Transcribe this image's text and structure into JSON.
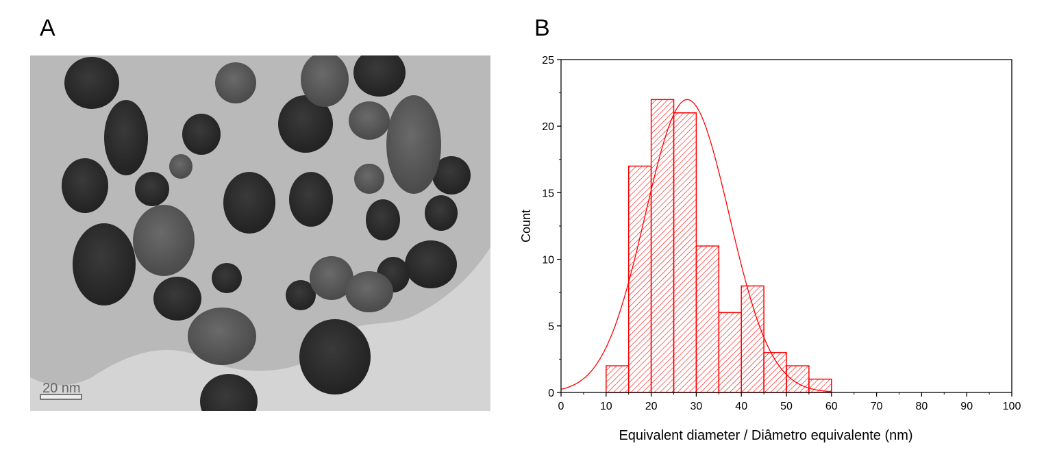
{
  "panels": {
    "a": {
      "label": "A",
      "scale_bar": "20 nm"
    },
    "b": {
      "label": "B"
    }
  },
  "chart_data": {
    "type": "bar",
    "title": "",
    "xlabel": "Equivalent diameter / Diâmetro equivalente (nm)",
    "ylabel": "Count",
    "xlim": [
      0,
      100
    ],
    "ylim": [
      0,
      25
    ],
    "xticks": [
      0,
      10,
      20,
      30,
      40,
      50,
      60,
      70,
      80,
      90,
      100
    ],
    "yticks": [
      0,
      5,
      10,
      15,
      20,
      25
    ],
    "bin_width": 5,
    "bins": [
      [
        10,
        15
      ],
      [
        15,
        20
      ],
      [
        20,
        25
      ],
      [
        25,
        30
      ],
      [
        30,
        35
      ],
      [
        35,
        40
      ],
      [
        40,
        45
      ],
      [
        45,
        50
      ],
      [
        50,
        55
      ],
      [
        55,
        60
      ]
    ],
    "categories": [
      "10-15",
      "15-20",
      "20-25",
      "25-30",
      "30-35",
      "35-40",
      "40-45",
      "45-50",
      "50-55",
      "55-60"
    ],
    "values": [
      2,
      17,
      22,
      21,
      11,
      6,
      8,
      3,
      2,
      1
    ],
    "fit": {
      "type": "normal",
      "peak_x": 28,
      "peak_y": 22,
      "sigma": 9.3
    },
    "color": "#ff0000",
    "fill": "diagonal hatch",
    "grid": false,
    "legend": null
  }
}
